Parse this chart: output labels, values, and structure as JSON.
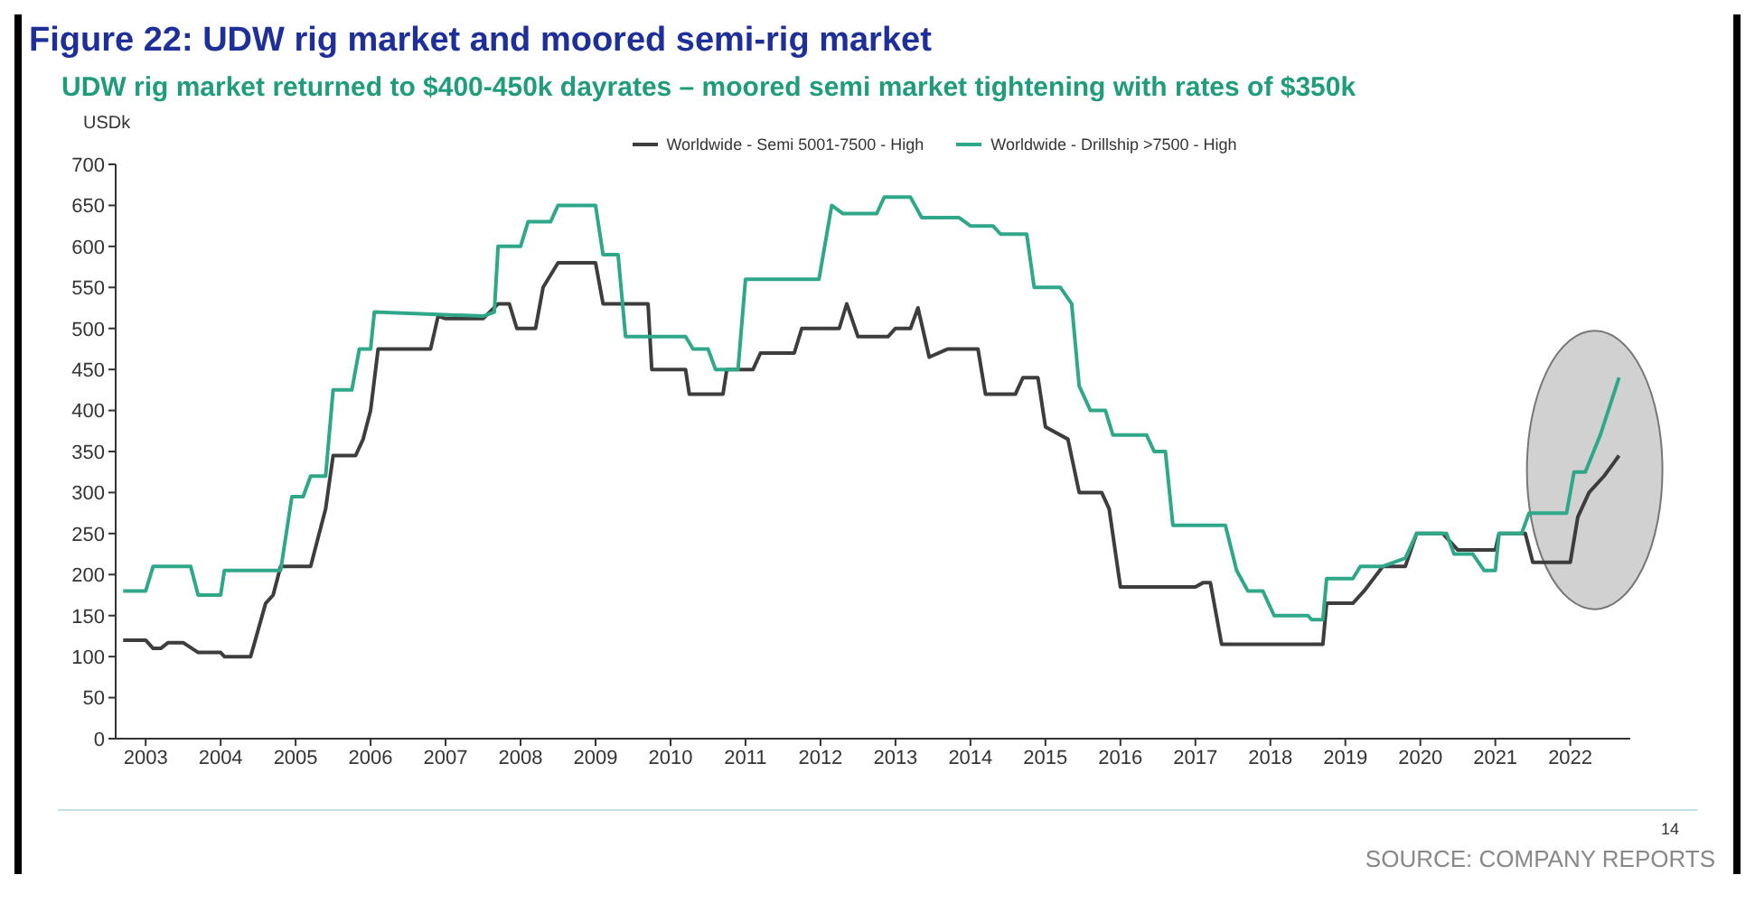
{
  "chart_data": {
    "type": "line",
    "title": "Figure 22: UDW rig market and moored semi-rig market",
    "subtitle": "UDW rig market returned to $400-450k dayrates – moored semi market tightening with rates of $350k",
    "ylabel": "USDk",
    "xlim": [
      2002.6,
      2022.8
    ],
    "xticks": [
      2003,
      2004,
      2005,
      2006,
      2007,
      2008,
      2009,
      2010,
      2011,
      2012,
      2013,
      2014,
      2015,
      2016,
      2017,
      2018,
      2019,
      2020,
      2021,
      2022
    ],
    "ylim": [
      0,
      700
    ],
    "yticks": [
      0,
      50,
      100,
      150,
      200,
      250,
      300,
      350,
      400,
      450,
      500,
      550,
      600,
      650,
      700
    ],
    "grid": false,
    "legend": "top",
    "marker": "none",
    "line_style": "solid",
    "series": [
      {
        "name": "Worldwide - Semi 5001-7500 - High",
        "color": "#3d3d3d",
        "x": [
          2002.7,
          2003.0,
          2003.1,
          2003.2,
          2003.3,
          2003.5,
          2003.7,
          2004.0,
          2004.05,
          2004.4,
          2004.6,
          2004.7,
          2004.8,
          2005.2,
          2005.4,
          2005.5,
          2005.8,
          2005.9,
          2006.0,
          2006.1,
          2006.8,
          2006.9,
          2007.0,
          2007.5,
          2007.7,
          2007.85,
          2007.95,
          2008.2,
          2008.3,
          2008.5,
          2009.0,
          2009.1,
          2009.7,
          2009.75,
          2010.2,
          2010.25,
          2010.7,
          2010.75,
          2011.1,
          2011.2,
          2011.65,
          2011.75,
          2012.25,
          2012.35,
          2012.5,
          2012.9,
          2013.0,
          2013.2,
          2013.3,
          2013.45,
          2013.7,
          2014.1,
          2014.2,
          2014.6,
          2014.7,
          2014.9,
          2015.0,
          2015.3,
          2015.45,
          2015.75,
          2015.85,
          2016.0,
          2017.0,
          2017.1,
          2017.2,
          2017.35,
          2018.7,
          2018.75,
          2019.1,
          2019.25,
          2019.5,
          2019.8,
          2019.95,
          2020.3,
          2020.5,
          2021.0,
          2021.05,
          2021.4,
          2021.5,
          2022.0,
          2022.1,
          2022.25,
          2022.45,
          2022.65
        ],
        "values": [
          120,
          120,
          110,
          110,
          117,
          117,
          105,
          105,
          100,
          100,
          165,
          175,
          210,
          210,
          280,
          345,
          345,
          365,
          400,
          475,
          475,
          515,
          512,
          512,
          530,
          530,
          500,
          500,
          550,
          580,
          580,
          530,
          530,
          450,
          450,
          420,
          420,
          450,
          450,
          470,
          470,
          500,
          500,
          530,
          490,
          490,
          500,
          500,
          525,
          465,
          475,
          475,
          420,
          420,
          440,
          440,
          380,
          365,
          300,
          300,
          280,
          185,
          185,
          190,
          190,
          115,
          115,
          165,
          165,
          180,
          210,
          210,
          250,
          250,
          230,
          230,
          250,
          250,
          215,
          215,
          270,
          300,
          320,
          345
        ]
      },
      {
        "name": "Worldwide - Drillship >7500 - High",
        "color": "#2fa88a",
        "x": [
          2002.7,
          2003.0,
          2003.1,
          2003.6,
          2003.7,
          2004.0,
          2004.05,
          2004.8,
          2004.95,
          2005.1,
          2005.2,
          2005.4,
          2005.5,
          2005.75,
          2005.85,
          2006.0,
          2006.05,
          2007.5,
          2007.65,
          2007.7,
          2008.0,
          2008.1,
          2008.4,
          2008.5,
          2009.0,
          2009.1,
          2009.3,
          2009.4,
          2010.2,
          2010.3,
          2010.5,
          2010.6,
          2010.9,
          2011.0,
          2011.98,
          2012.15,
          2012.3,
          2012.75,
          2012.85,
          2013.2,
          2013.35,
          2013.85,
          2014.0,
          2014.3,
          2014.4,
          2014.75,
          2014.85,
          2015.2,
          2015.35,
          2015.45,
          2015.6,
          2015.8,
          2015.9,
          2016.35,
          2016.45,
          2016.6,
          2016.7,
          2017.4,
          2017.55,
          2017.7,
          2017.9,
          2018.05,
          2018.5,
          2018.55,
          2018.7,
          2018.75,
          2019.1,
          2019.2,
          2019.5,
          2019.8,
          2019.95,
          2020.35,
          2020.45,
          2020.7,
          2020.85,
          2021.0,
          2021.05,
          2021.35,
          2021.45,
          2021.95,
          2022.05,
          2022.2,
          2022.4,
          2022.65
        ],
        "values": [
          180,
          180,
          210,
          210,
          175,
          175,
          205,
          205,
          295,
          295,
          320,
          320,
          425,
          425,
          475,
          475,
          520,
          515,
          520,
          600,
          600,
          630,
          630,
          650,
          650,
          590,
          590,
          490,
          490,
          475,
          475,
          450,
          450,
          560,
          560,
          650,
          640,
          640,
          660,
          660,
          635,
          635,
          625,
          625,
          615,
          615,
          550,
          550,
          530,
          430,
          400,
          400,
          370,
          370,
          350,
          350,
          260,
          260,
          205,
          180,
          180,
          150,
          150,
          145,
          145,
          195,
          195,
          210,
          210,
          220,
          250,
          250,
          225,
          225,
          205,
          205,
          250,
          250,
          275,
          275,
          325,
          325,
          370,
          440
        ]
      }
    ],
    "annotations": [
      "SOURCE: COMPANY REPORTS",
      "14"
    ]
  }
}
